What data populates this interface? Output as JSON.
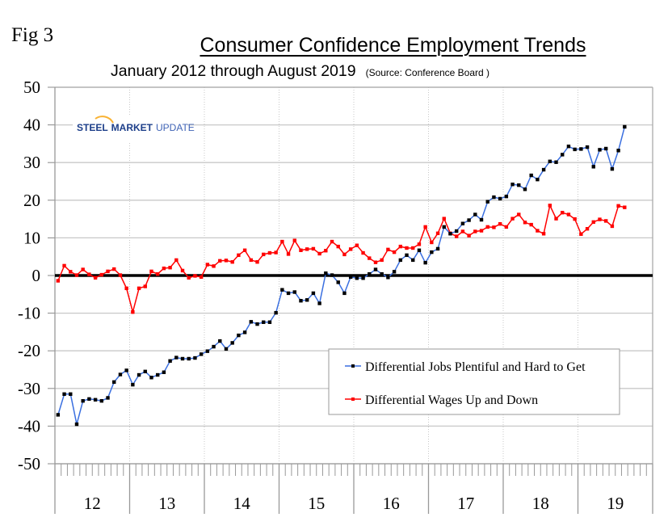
{
  "figure_label": "Fig 3",
  "logo": {
    "word1": "STEEL",
    "word2": "MARKET",
    "word3": "UPDATE"
  },
  "chart_data": {
    "type": "line",
    "title": "Consumer Confidence Employment Trends",
    "subtitle": "January 2012 through August 2019",
    "source_note": "(Source: Conference Board )",
    "xlabel": "",
    "ylabel": "",
    "ylim": [
      -50,
      50
    ],
    "yticks": [
      50,
      40,
      30,
      20,
      10,
      0,
      -10,
      -20,
      -30,
      -40,
      -50
    ],
    "ytick_labels": [
      "50",
      "40",
      "30",
      "20",
      "10",
      "0",
      "-10",
      "-20",
      "-30",
      "-40",
      "-50"
    ],
    "x_start": "2012-01",
    "x_end": "2019-08",
    "x_months_on_axis": 96,
    "year_labels": [
      "12",
      "13",
      "14",
      "15",
      "16",
      "17",
      "18",
      "19"
    ],
    "grid": true,
    "zero_line": true,
    "legend_position": "lower-right",
    "series": [
      {
        "name": "Differential Jobs Plentiful and Hard to Get",
        "color": "#3a6fe0",
        "marker_color": "#000000",
        "values": [
          -37.0,
          -31.5,
          -31.5,
          -39.5,
          -33.3,
          -32.8,
          -33.0,
          -33.3,
          -32.5,
          -28.3,
          -26.3,
          -25.2,
          -29.0,
          -26.4,
          -25.5,
          -27.1,
          -26.4,
          -25.7,
          -22.7,
          -21.8,
          -22.1,
          -22.1,
          -21.9,
          -20.9,
          -20.1,
          -18.9,
          -17.4,
          -19.5,
          -17.9,
          -15.9,
          -15.1,
          -12.3,
          -12.9,
          -12.4,
          -12.4,
          -9.9,
          -3.8,
          -4.7,
          -4.4,
          -6.7,
          -6.5,
          -4.7,
          -7.4,
          0.6,
          0.1,
          -1.8,
          -4.7,
          -0.4,
          -0.7,
          -0.7,
          0.4,
          1.6,
          0.4,
          -0.5,
          1.0,
          4.1,
          5.4,
          4.1,
          6.7,
          3.4,
          6.2,
          7.1,
          12.9,
          11.1,
          11.8,
          13.8,
          14.7,
          16.2,
          14.8,
          19.6,
          20.8,
          20.4,
          21.0,
          24.2,
          24.0,
          22.9,
          26.6,
          25.5,
          28.1,
          30.3,
          30.1,
          32.1,
          34.3,
          33.5,
          33.6,
          34.1,
          28.9,
          33.4,
          33.7,
          28.3,
          33.2,
          39.5
        ]
      },
      {
        "name": "Differential Wages Up and Down",
        "color": "#ff0000",
        "marker_color": "#ff0000",
        "values": [
          -1.4,
          2.6,
          1.0,
          0.1,
          1.6,
          0.3,
          -0.6,
          0.2,
          1.1,
          1.7,
          0.1,
          -3.4,
          -9.7,
          -3.4,
          -2.9,
          1.1,
          0.4,
          1.9,
          2.1,
          4.1,
          1.3,
          -0.6,
          -0.1,
          -0.4,
          2.9,
          2.5,
          3.9,
          4.0,
          3.6,
          5.4,
          6.7,
          4.1,
          3.6,
          5.6,
          6.0,
          6.1,
          9.0,
          5.7,
          9.3,
          6.7,
          7.0,
          7.1,
          5.8,
          6.6,
          9.0,
          7.7,
          5.6,
          7.0,
          8.0,
          6.0,
          4.6,
          3.5,
          4.1,
          6.9,
          6.2,
          7.7,
          7.3,
          7.3,
          8.3,
          12.9,
          8.8,
          11.2,
          15.1,
          11.2,
          10.4,
          11.7,
          10.6,
          11.7,
          11.9,
          12.9,
          12.8,
          13.7,
          12.9,
          15.1,
          16.2,
          14.1,
          13.5,
          11.9,
          11.1,
          18.6,
          15.1,
          16.7,
          16.2,
          15.0,
          11.0,
          12.4,
          14.2,
          14.9,
          14.5,
          13.1,
          18.5,
          18.1
        ]
      }
    ]
  }
}
